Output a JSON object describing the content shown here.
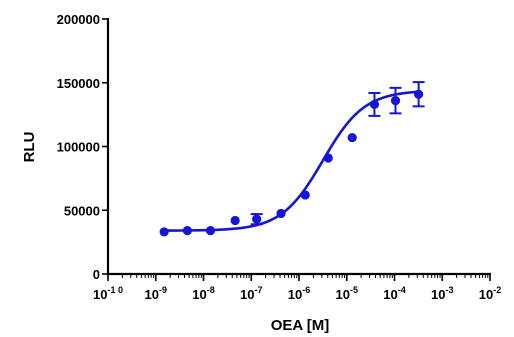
{
  "chart_data": {
    "type": "scatter",
    "title": "",
    "xlabel": "OEA [M]",
    "ylabel": "RLU",
    "x_scale": "log",
    "xlim": [
      1e-10,
      0.01
    ],
    "ylim": [
      0,
      200000
    ],
    "x_ticks": [
      {
        "base": "10",
        "exp": "-1 0"
      },
      {
        "base": "10",
        "exp": "-9"
      },
      {
        "base": "10",
        "exp": "-8"
      },
      {
        "base": "10",
        "exp": "-7"
      },
      {
        "base": "10",
        "exp": "-6"
      },
      {
        "base": "10",
        "exp": "-5"
      },
      {
        "base": "10",
        "exp": "-4"
      },
      {
        "base": "10",
        "exp": "-3"
      },
      {
        "base": "10",
        "exp": "-2"
      }
    ],
    "y_ticks": [
      "0",
      "50000",
      "100000",
      "150000",
      "200000"
    ],
    "grid": false,
    "color": "#1515d6",
    "series": [
      {
        "x": [
          1.5e-09,
          4.6e-09,
          1.4e-08,
          4.6e-08,
          1.3e-07,
          4.2e-07,
          1.35e-06,
          4.1e-06,
          1.3e-05,
          3.8e-05,
          0.000105,
          0.00032
        ],
        "y": [
          33000,
          34000,
          34000,
          42000,
          43000,
          47500,
          62000,
          91000,
          107000,
          133000,
          136000,
          141000
        ],
        "err": [
          0,
          0,
          0,
          0,
          4000,
          0,
          0,
          0,
          0,
          9000,
          10000,
          9500
        ]
      }
    ],
    "fit": {
      "type": "sigmoidal dose-response",
      "bottom": 34000,
      "top": 144000,
      "log_ec50": -5.5,
      "hill": 1
    }
  }
}
